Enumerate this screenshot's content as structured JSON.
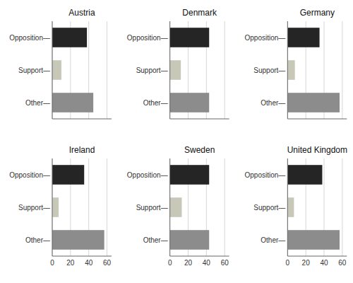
{
  "chart_data": [
    {
      "type": "bar",
      "orientation": "horizontal",
      "title": "Austria",
      "categories": [
        "Opposition—",
        "Support—",
        "Other—"
      ],
      "values": [
        38,
        10,
        45
      ],
      "colors": [
        "#252525",
        "#c8c8b8",
        "#8c8c8c"
      ],
      "xlim": [
        0,
        65
      ],
      "xticks": [
        0,
        20,
        40,
        60
      ],
      "grid": true,
      "tick_labels": "y"
    },
    {
      "type": "bar",
      "orientation": "horizontal",
      "title": "Denmark",
      "categories": [
        "Opposition—",
        "Support—",
        "Other—"
      ],
      "values": [
        43,
        12,
        43
      ],
      "colors": [
        "#252525",
        "#c8c8b8",
        "#8c8c8c"
      ],
      "xlim": [
        0,
        65
      ],
      "xticks": [
        0,
        20,
        40,
        60
      ],
      "grid": true,
      "tick_labels": "y"
    },
    {
      "type": "bar",
      "orientation": "horizontal",
      "title": "Germany",
      "categories": [
        "Opposition—",
        "Support—",
        "Other—"
      ],
      "values": [
        35,
        8,
        57
      ],
      "colors": [
        "#252525",
        "#c8c8b8",
        "#8c8c8c"
      ],
      "xlim": [
        0,
        65
      ],
      "xticks": [
        0,
        20,
        40,
        60
      ],
      "grid": true,
      "tick_labels": "y"
    },
    {
      "type": "bar",
      "orientation": "horizontal",
      "title": "Ireland",
      "categories": [
        "Opposition—",
        "Support—",
        "Other—"
      ],
      "values": [
        35,
        7,
        57
      ],
      "colors": [
        "#252525",
        "#c8c8b8",
        "#8c8c8c"
      ],
      "xlim": [
        0,
        65
      ],
      "xticks": [
        0,
        20,
        40,
        60
      ],
      "grid": true
    },
    {
      "type": "bar",
      "orientation": "horizontal",
      "title": "Sweden",
      "categories": [
        "Opposition—",
        "Support—",
        "Other—"
      ],
      "values": [
        43,
        13,
        43
      ],
      "colors": [
        "#252525",
        "#c8c8b8",
        "#8c8c8c"
      ],
      "xlim": [
        0,
        65
      ],
      "xticks": [
        0,
        20,
        40,
        60
      ],
      "grid": true
    },
    {
      "type": "bar",
      "orientation": "horizontal",
      "title": "United Kingdom",
      "categories": [
        "Opposition—",
        "Support—",
        "Other—"
      ],
      "values": [
        38,
        7,
        57
      ],
      "colors": [
        "#252525",
        "#c8c8b8",
        "#8c8c8c"
      ],
      "xlim": [
        0,
        65
      ],
      "xticks": [
        0,
        20,
        40,
        60
      ],
      "grid": true
    }
  ]
}
